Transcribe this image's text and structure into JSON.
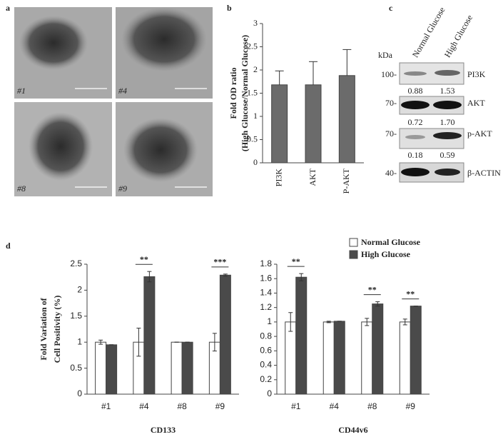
{
  "panel_labels": [
    "a",
    "b",
    "c",
    "d"
  ],
  "images": [
    "#1",
    "#4",
    "#8",
    "#9"
  ],
  "blot": {
    "columns": [
      "Normal Glucose",
      "High Glucose"
    ],
    "unit": "kDa",
    "rows": [
      {
        "marker": "100-",
        "label": "PI3K",
        "values": [
          "0.88",
          "1.53"
        ]
      },
      {
        "marker": "70-",
        "label": "AKT",
        "values": [
          "0.72",
          "1.70"
        ]
      },
      {
        "marker": "70-",
        "label": "p-AKT",
        "values": [
          "0.18",
          "0.59"
        ]
      },
      {
        "marker": "40-",
        "label": "β-ACTIN",
        "values": []
      }
    ]
  },
  "chart_data": [
    {
      "type": "bar",
      "y_label": [
        "Fold OD ratio",
        "(High Glucose/Normal Glucose)"
      ],
      "categories": [
        "PI3K",
        "AKT",
        "P-AKT"
      ],
      "values": [
        1.68,
        1.68,
        1.88
      ],
      "errors": [
        0.3,
        0.5,
        0.56
      ],
      "color": "#6b6b6b",
      "ylim": [
        0,
        3
      ],
      "yticks": [
        0,
        0.5,
        1,
        1.5,
        2,
        2.5,
        3
      ]
    },
    {
      "type": "grouped_bar",
      "y_label": [
        "Fold Variation of",
        "Cell Positivity (%)"
      ],
      "legend": [
        {
          "name": "Normal Glucose",
          "color": "#ffffff"
        },
        {
          "name": "High Glucose",
          "color": "#4a4a4a"
        }
      ],
      "subplots": [
        {
          "title": "CD133",
          "categories": [
            "#1",
            "#4",
            "#8",
            "#9"
          ],
          "ylim": [
            0,
            2.5
          ],
          "yticks": [
            0,
            0.5,
            1,
            1.5,
            2,
            2.5
          ],
          "series": [
            {
              "values": [
                1,
                1,
                1,
                1
              ],
              "errors": [
                0.04,
                0.27,
                0,
                0.17
              ]
            },
            {
              "values": [
                0.95,
                2.26,
                1,
                2.29
              ],
              "errors": [
                0,
                0.1,
                0,
                0.02
              ]
            }
          ],
          "annotations": [
            {
              "x": "#4",
              "text": "**"
            },
            {
              "x": "#9",
              "text": "***"
            }
          ]
        },
        {
          "title": "CD44v6",
          "categories": [
            "#1",
            "#4",
            "#8",
            "#9"
          ],
          "ylim": [
            0,
            1.8
          ],
          "yticks": [
            0,
            0.2,
            0.4,
            0.6,
            0.8,
            1,
            1.2,
            1.4,
            1.6,
            1.8
          ],
          "series": [
            {
              "values": [
                1,
                1,
                1,
                1
              ],
              "errors": [
                0.13,
                0.01,
                0.05,
                0.04
              ]
            },
            {
              "values": [
                1.62,
                1.01,
                1.25,
                1.22
              ],
              "errors": [
                0.05,
                0,
                0.03,
                0
              ]
            }
          ],
          "annotations": [
            {
              "x": "#1",
              "text": "**"
            },
            {
              "x": "#8",
              "text": "**"
            },
            {
              "x": "#9",
              "text": "**"
            }
          ]
        }
      ]
    }
  ]
}
